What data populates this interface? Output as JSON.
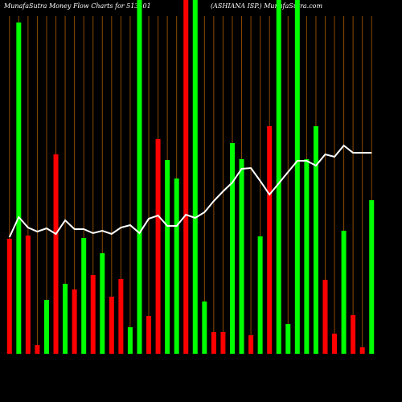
{
  "chart_data": {
    "type": "bar",
    "title": "MunafaSutra  Money Flow  Charts for 513401",
    "subtitle": "(ASHIANA ISP.) MunafaSutra.com",
    "categories": [
      null,
      null,
      null,
      null,
      null,
      null,
      null,
      null,
      null,
      null,
      null,
      null,
      null,
      null,
      null,
      null,
      null,
      null,
      null,
      null,
      null,
      null,
      null,
      null,
      null,
      null,
      null,
      null,
      null,
      null,
      null,
      null,
      null,
      null,
      null,
      null,
      null,
      null,
      null,
      null
    ],
    "values": [
      143,
      412,
      147,
      11,
      67,
      248,
      87,
      80,
      144,
      98,
      125,
      71,
      93,
      33,
      440,
      47,
      267,
      241,
      218,
      440,
      440,
      65,
      27,
      27,
      262,
      242,
      23,
      146,
      283,
      440,
      37,
      440,
      242,
      283,
      92,
      25,
      153,
      48,
      8,
      191
    ],
    "colors": [
      "#ff0000",
      "#00ff00",
      "#ff0000",
      "#ff0000",
      "#00ff00",
      "#ff0000",
      "#00ff00",
      "#ff0000",
      "#00ff00",
      "#ff0000",
      "#00ff00",
      "#ff0000",
      "#ff0000",
      "#00ff00",
      "#00ff00",
      "#ff0000",
      "#ff0000",
      "#00ff00",
      "#00ff00",
      "#ff0000",
      "#00ff00",
      "#00ff00",
      "#ff0000",
      "#ff0000",
      "#00ff00",
      "#00ff00",
      "#ff0000",
      "#00ff00",
      "#ff0000",
      "#00ff00",
      "#00ff00",
      "#00ff00",
      "#00ff00",
      "#00ff00",
      "#ff0000",
      "#ff0000",
      "#00ff00",
      "#ff0000",
      "#ff0000",
      "#00ff00"
    ],
    "line": {
      "color": "#ffffff",
      "values": [
        145,
        170,
        157,
        152,
        156,
        149,
        166,
        155,
        155,
        150,
        153,
        149,
        157,
        160,
        150,
        168,
        172,
        159,
        159,
        173,
        169,
        176,
        190,
        202,
        213,
        230,
        231,
        215,
        198,
        212,
        226,
        240,
        240,
        234,
        248,
        245,
        259,
        250,
        250,
        250
      ]
    },
    "ylim": [
      0,
      440
    ]
  }
}
